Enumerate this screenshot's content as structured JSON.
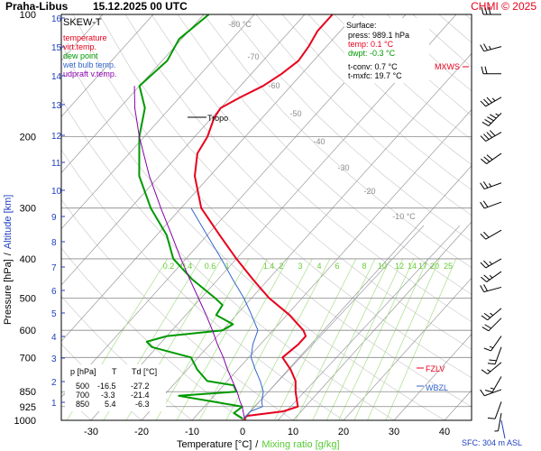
{
  "header": {
    "station": "Praha-Libus",
    "datetime": "15.12.2025 00 UTC",
    "copyright": "CHMI © 2025"
  },
  "legend": {
    "title": "SKEW-T",
    "items": [
      {
        "label": "temperature",
        "color": "#e8001c"
      },
      {
        "label": "virt.temp.",
        "color": "#e8001c"
      },
      {
        "label": "dew point",
        "color": "#009900"
      },
      {
        "label": "wet bulb temp.",
        "color": "#3366cc"
      },
      {
        "label": "udpraft v.temp.",
        "color": "#8800aa"
      }
    ]
  },
  "surface": {
    "title": "Surface:",
    "press": "press: 989.1 hPa",
    "temp": "temp: 0.1 °C",
    "dwpt": "dwpt: -0.3 °C",
    "tconv": "t-conv: 0.7 °C",
    "tmxfc": "t-mxfc: 19.7 °C"
  },
  "table": {
    "headers": [
      "p [hPa]",
      "T",
      "Td [°C]"
    ],
    "rows": [
      [
        "500",
        "-16.5",
        "-27.2"
      ],
      [
        "700",
        "-3.3",
        "-21.4"
      ],
      [
        "850",
        "5.4",
        "-6.3"
      ]
    ]
  },
  "markers": {
    "tropo": "Tropo",
    "mxws": "MXWS",
    "fzlv": "FZLV",
    "wbzl": "WBZL",
    "sfc": "SFC: 304 m ASL"
  },
  "axes": {
    "ylabel_pressure": "Pressure [hPa]",
    "ylabel_sep": "/",
    "ylabel_altitude": "Altitude [km]",
    "xlabel_temp": "Temperature [°C]",
    "xlabel_sep": "/",
    "xlabel_mix": "Mixing ratio [g/kg]"
  },
  "chart_data": {
    "type": "line",
    "x_scale": "skew-t",
    "xlim": [
      -35,
      45
    ],
    "x_ticks": [
      -30,
      -20,
      -10,
      0,
      10,
      20,
      30,
      40
    ],
    "y_scale": "log",
    "ylim": [
      1000,
      100
    ],
    "pressure_ticks": [
      100,
      200,
      300,
      400,
      500,
      600,
      700,
      850,
      925,
      1000
    ],
    "altitude_ticks": [
      1,
      2,
      3,
      4,
      5,
      6,
      7,
      8,
      9,
      10,
      11,
      12,
      13,
      14,
      15,
      16
    ],
    "isotherm_labels": [
      "-80 °C",
      "-70",
      "-60",
      "-50",
      "-40",
      "-30",
      "-20",
      "-10 °C"
    ],
    "isotherm_values": [
      -80,
      -70,
      -60,
      -50,
      -40,
      -30,
      -20,
      -10
    ],
    "mixing_ratio_labels": [
      "0.2",
      "0.4",
      "0.6",
      "1",
      "1.4",
      "2",
      "3",
      "4",
      "6",
      "8",
      "10",
      "12",
      "14",
      "17",
      "20",
      "25"
    ],
    "series": [
      {
        "name": "temperature",
        "color": "#e8001c",
        "points": [
          [
            1000,
            0.5
          ],
          [
            990,
            0.1
          ],
          [
            975,
            0.0
          ],
          [
            950,
            6.5
          ],
          [
            925,
            8.5
          ],
          [
            900,
            7.5
          ],
          [
            850,
            5.4
          ],
          [
            800,
            3.5
          ],
          [
            750,
            0.5
          ],
          [
            700,
            -3.3
          ],
          [
            650,
            -2.5
          ],
          [
            620,
            -2.5
          ],
          [
            600,
            -4.0
          ],
          [
            550,
            -9.5
          ],
          [
            500,
            -16.5
          ],
          [
            450,
            -23.0
          ],
          [
            400,
            -30.0
          ],
          [
            350,
            -37.5
          ],
          [
            300,
            -46.0
          ],
          [
            250,
            -53.0
          ],
          [
            220,
            -56.5
          ],
          [
            200,
            -57.5
          ],
          [
            180,
            -59.5
          ],
          [
            170,
            -60.0
          ],
          [
            160,
            -58.0
          ],
          [
            150,
            -55.5
          ],
          [
            140,
            -54.0
          ],
          [
            130,
            -53.0
          ],
          [
            120,
            -53.5
          ],
          [
            110,
            -54.5
          ],
          [
            100,
            -54.5
          ]
        ]
      },
      {
        "name": "dew point",
        "color": "#009900",
        "points": [
          [
            990,
            -0.3
          ],
          [
            960,
            -3.0
          ],
          [
            925,
            -2.5
          ],
          [
            900,
            -9.0
          ],
          [
            870,
            -17.0
          ],
          [
            850,
            -6.3
          ],
          [
            820,
            -8.0
          ],
          [
            800,
            -14.0
          ],
          [
            750,
            -18.0
          ],
          [
            700,
            -21.4
          ],
          [
            660,
            -31.0
          ],
          [
            640,
            -33.0
          ],
          [
            620,
            -30.0
          ],
          [
            600,
            -20.0
          ],
          [
            580,
            -19.0
          ],
          [
            550,
            -24.0
          ],
          [
            520,
            -24.5
          ],
          [
            500,
            -27.2
          ],
          [
            450,
            -35.0
          ],
          [
            400,
            -42.5
          ],
          [
            350,
            -48.0
          ],
          [
            300,
            -56.0
          ],
          [
            250,
            -64.0
          ],
          [
            200,
            -71.0
          ],
          [
            170,
            -75.0
          ],
          [
            150,
            -80.0
          ],
          [
            130,
            -79.0
          ],
          [
            115,
            -80.5
          ],
          [
            100,
            -79.0
          ]
        ]
      },
      {
        "name": "wet bulb temp.",
        "color": "#3366cc",
        "points": [
          [
            990,
            0.0
          ],
          [
            950,
            0.0
          ],
          [
            925,
            1.5
          ],
          [
            900,
            0.5
          ],
          [
            850,
            -1.0
          ],
          [
            800,
            -3.5
          ],
          [
            750,
            -6.5
          ],
          [
            700,
            -9.5
          ],
          [
            650,
            -11.5
          ],
          [
            600,
            -13.0
          ],
          [
            550,
            -17.0
          ],
          [
            500,
            -21.5
          ],
          [
            450,
            -27.0
          ],
          [
            400,
            -33.0
          ],
          [
            350,
            -40.0
          ],
          [
            300,
            -48.0
          ]
        ]
      },
      {
        "name": "udpraft v.temp.",
        "color": "#8800aa",
        "points": [
          [
            990,
            0.1
          ],
          [
            950,
            -1.5
          ],
          [
            925,
            -2.5
          ],
          [
            900,
            -3.8
          ],
          [
            850,
            -6.2
          ],
          [
            800,
            -9.0
          ],
          [
            750,
            -12.0
          ],
          [
            700,
            -15.0
          ],
          [
            650,
            -18.5
          ],
          [
            600,
            -22.0
          ],
          [
            550,
            -26.0
          ],
          [
            500,
            -30.5
          ],
          [
            450,
            -35.5
          ],
          [
            400,
            -41.0
          ],
          [
            350,
            -47.0
          ],
          [
            300,
            -54.0
          ],
          [
            250,
            -62.0
          ],
          [
            200,
            -71.0
          ],
          [
            170,
            -77.0
          ],
          [
            150,
            -81.0
          ]
        ]
      }
    ],
    "wind_barbs": [
      {
        "p": 100,
        "dir": 270,
        "kt": 30
      },
      {
        "p": 120,
        "dir": 255,
        "kt": 25
      },
      {
        "p": 140,
        "dir": 270,
        "kt": 20
      },
      {
        "p": 160,
        "dir": 240,
        "kt": 35
      },
      {
        "p": 175,
        "dir": 225,
        "kt": 45
      },
      {
        "p": 195,
        "dir": 240,
        "kt": 40
      },
      {
        "p": 220,
        "dir": 235,
        "kt": 30
      },
      {
        "p": 260,
        "dir": 250,
        "kt": 25
      },
      {
        "p": 290,
        "dir": 250,
        "kt": 20
      },
      {
        "p": 340,
        "dir": 240,
        "kt": 20
      },
      {
        "p": 400,
        "dir": 240,
        "kt": 25
      },
      {
        "p": 430,
        "dir": 235,
        "kt": 25
      },
      {
        "p": 470,
        "dir": 255,
        "kt": 20
      },
      {
        "p": 530,
        "dir": 230,
        "kt": 25
      },
      {
        "p": 560,
        "dir": 225,
        "kt": 20
      },
      {
        "p": 620,
        "dir": 215,
        "kt": 15
      },
      {
        "p": 660,
        "dir": 200,
        "kt": 20
      },
      {
        "p": 720,
        "dir": 230,
        "kt": 15
      },
      {
        "p": 780,
        "dir": 210,
        "kt": 15
      },
      {
        "p": 840,
        "dir": 250,
        "kt": 10
      },
      {
        "p": 900,
        "dir": 200,
        "kt": 10
      },
      {
        "p": 960,
        "dir": 190,
        "kt": 5
      }
    ]
  }
}
